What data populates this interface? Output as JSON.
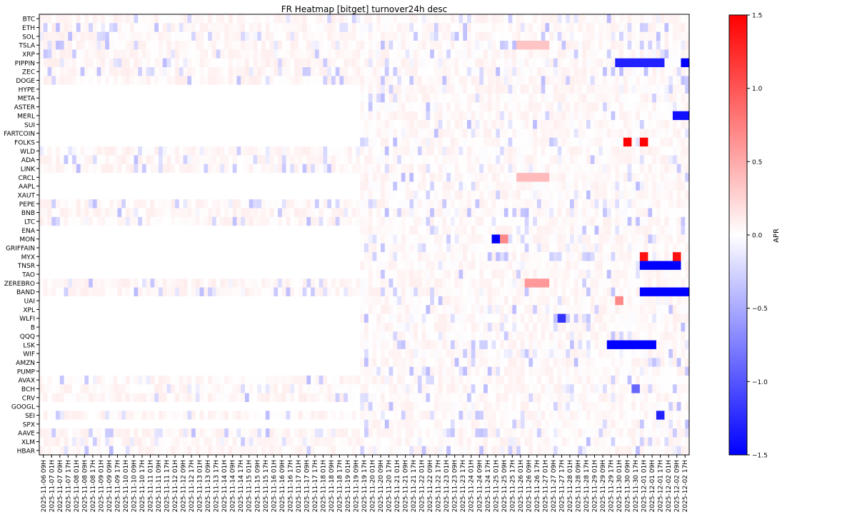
{
  "chart_data": {
    "type": "heatmap",
    "title": "FR Heatmap [bitget] turnover24h desc",
    "colorbar": {
      "label": "APR",
      "range": [
        -1.5,
        1.5
      ],
      "ticks": [
        "1.5",
        "1.0",
        "0.5",
        "0.0",
        "−0.5",
        "−1.0",
        "−1.5"
      ],
      "tick_values": [
        1.5,
        1.0,
        0.5,
        0.0,
        -0.5,
        -1.0,
        -1.5
      ],
      "colors": {
        "low": "#0000ff",
        "mid": "#ffffff",
        "high": "#ff0000"
      }
    },
    "rows": [
      "BTC",
      "ETH",
      "SOL",
      "TSLA",
      "XRP",
      "PIPPIN",
      "ZEC",
      "DOGE",
      "HYPE",
      "META",
      "ASTER",
      "MERL",
      "SUI",
      "FARTCOIN",
      "FOLKS",
      "WLD",
      "ADA",
      "LINK",
      "CRCL",
      "AAPL",
      "XAUT",
      "PEPE",
      "BNB",
      "LTC",
      "ENA",
      "MON",
      "GRIFFAIN",
      "MYX",
      "TNSR",
      "TAO",
      "ZEREBRO",
      "BAND",
      "UAI",
      "XPL",
      "WLFI",
      "B",
      "QQQ",
      "LSK",
      "WIF",
      "AMZN",
      "PUMP",
      "AVAX",
      "BCH",
      "CRV",
      "GOOGL",
      "SEI",
      "SPX",
      "AAVE",
      "XLM",
      "HBAR"
    ],
    "columns": [
      "2025-11-06 09H",
      "2025-11-07 01H",
      "2025-11-07 09H",
      "2025-11-07 17H",
      "2025-11-08 01H",
      "2025-11-08 09H",
      "2025-11-08 17H",
      "2025-11-09 01H",
      "2025-11-09 09H",
      "2025-11-09 17H",
      "2025-11-10 01H",
      "2025-11-10 09H",
      "2025-11-10 17H",
      "2025-11-11 01H",
      "2025-11-11 09H",
      "2025-11-11 17H",
      "2025-11-12 01H",
      "2025-11-12 09H",
      "2025-11-12 17H",
      "2025-11-13 01H",
      "2025-11-13 09H",
      "2025-11-13 17H",
      "2025-11-14 01H",
      "2025-11-14 09H",
      "2025-11-14 17H",
      "2025-11-15 01H",
      "2025-11-15 09H",
      "2025-11-15 17H",
      "2025-11-16 01H",
      "2025-11-16 09H",
      "2025-11-16 17H",
      "2025-11-17 01H",
      "2025-11-17 09H",
      "2025-11-17 17H",
      "2025-11-18 01H",
      "2025-11-18 09H",
      "2025-11-18 17H",
      "2025-11-19 01H",
      "2025-11-19 09H",
      "2025-11-19 17H",
      "2025-11-20 01H",
      "2025-11-20 09H",
      "2025-11-20 17H",
      "2025-11-21 01H",
      "2025-11-21 09H",
      "2025-11-21 17H",
      "2025-11-22 01H",
      "2025-11-22 09H",
      "2025-11-22 17H",
      "2025-11-23 01H",
      "2025-11-23 09H",
      "2025-11-23 17H",
      "2025-11-24 01H",
      "2025-11-24 09H",
      "2025-11-24 17H",
      "2025-11-25 01H",
      "2025-11-25 09H",
      "2025-11-25 17H",
      "2025-11-26 01H",
      "2025-11-26 09H",
      "2025-11-26 17H",
      "2025-11-27 01H",
      "2025-11-27 09H",
      "2025-11-27 17H",
      "2025-11-28 01H",
      "2025-11-28 09H",
      "2025-11-28 17H",
      "2025-11-29 01H",
      "2025-11-29 09H",
      "2025-11-29 17H",
      "2025-11-30 01H",
      "2025-11-30 09H",
      "2025-11-30 17H",
      "2025-12-01 01H",
      "2025-12-01 09H",
      "2025-12-01 17H",
      "2025-12-02 01H",
      "2025-12-02 09H",
      "2025-12-02 17H"
    ],
    "column_label_step": 1,
    "cells_per_day": 3,
    "visible_columns_per_step": 0.5,
    "default": {
      "early_value": 0.04,
      "late_value": 0.03,
      "empty_early_rows": [
        "HYPE",
        "META",
        "ASTER",
        "MERL",
        "SUI",
        "FARTCOIN",
        "FOLKS",
        "CRCL",
        "AAPL",
        "XAUT",
        "ENA",
        "MON",
        "GRIFFAIN",
        "MYX",
        "TNSR",
        "TAO",
        "UAI",
        "XPL",
        "WLFI",
        "B",
        "QQQ",
        "LSK",
        "WIF",
        "AMZN",
        "PUMP",
        "GOOGL",
        "SPX"
      ],
      "empty_until": "2025-11-19 17H"
    },
    "highlights": [
      {
        "row": "PIPPIN",
        "from": "2025-11-30 01H",
        "to": "2025-12-01 17H",
        "value": -1.3
      },
      {
        "row": "PIPPIN",
        "from": "2025-12-02 17H",
        "to": "2025-12-02 17H",
        "value": -1.5
      },
      {
        "row": "MERL",
        "from": "2025-12-02 09H",
        "to": "2025-12-02 17H",
        "value": -1.4
      },
      {
        "row": "FOLKS",
        "from": "2025-11-30 09H",
        "to": "2025-11-30 09H",
        "value": 1.5
      },
      {
        "row": "FOLKS",
        "from": "2025-12-01 01H",
        "to": "2025-12-01 01H",
        "value": 1.5
      },
      {
        "row": "MON",
        "from": "2025-11-25 01H",
        "to": "2025-11-25 01H",
        "value": -1.5
      },
      {
        "row": "MON",
        "from": "2025-11-25 09H",
        "to": "2025-11-25 09H",
        "value": 0.7
      },
      {
        "row": "MYX",
        "from": "2025-12-01 01H",
        "to": "2025-12-01 01H",
        "value": 1.4
      },
      {
        "row": "MYX",
        "from": "2025-12-02 09H",
        "to": "2025-12-02 09H",
        "value": 1.4
      },
      {
        "row": "TNSR",
        "from": "2025-12-01 01H",
        "to": "2025-12-02 09H",
        "value": -1.5
      },
      {
        "row": "BAND",
        "from": "2025-12-01 01H",
        "to": "2025-12-02 17H",
        "value": -1.5
      },
      {
        "row": "LSK",
        "from": "2025-11-29 17H",
        "to": "2025-12-01 09H",
        "value": -1.5
      },
      {
        "row": "ZEREBRO",
        "from": "2025-11-26 09H",
        "to": "2025-11-27 01H",
        "value": 0.6
      },
      {
        "row": "CRCL",
        "from": "2025-11-26 01H",
        "to": "2025-11-27 01H",
        "value": 0.4
      },
      {
        "row": "TSLA",
        "from": "2025-11-26 01H",
        "to": "2025-11-27 01H",
        "value": 0.35
      },
      {
        "row": "UAI",
        "from": "2025-11-30 01H",
        "to": "2025-11-30 01H",
        "value": 0.7
      },
      {
        "row": "SEI",
        "from": "2025-12-01 17H",
        "to": "2025-12-01 17H",
        "value": -1.3
      },
      {
        "row": "WLFI",
        "from": "2025-11-27 17H",
        "to": "2025-11-27 17H",
        "value": -1.2
      },
      {
        "row": "BCH",
        "from": "2025-11-30 17H",
        "to": "2025-11-30 17H",
        "value": -0.9
      }
    ]
  }
}
